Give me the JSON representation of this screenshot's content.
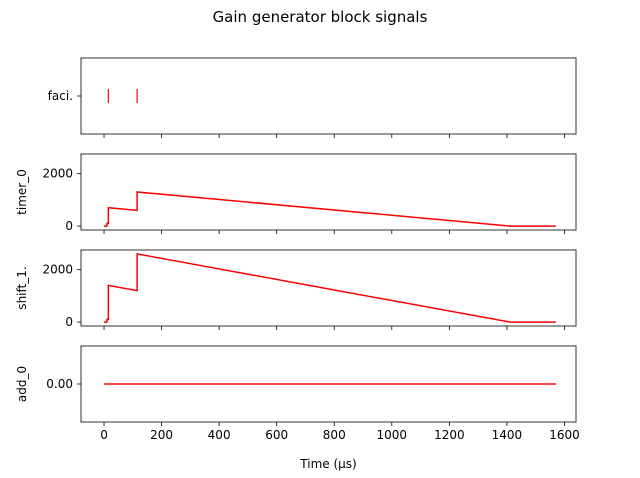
{
  "chart_data": {
    "type": "line",
    "title": "Gain generator block signals",
    "xlabel": "Time (μs)",
    "xlim": [
      -80,
      1640
    ],
    "xticks": [
      0,
      200,
      400,
      600,
      800,
      1000,
      1200,
      1400,
      1600
    ],
    "xtick_labels": [
      "0",
      "200",
      "400",
      "600",
      "800",
      "1000",
      "1200",
      "1400",
      "1600"
    ],
    "line_color": "#ff0000",
    "panels": [
      {
        "name": "faci.",
        "kind": "events",
        "ylabel": "",
        "yticks": [],
        "ytick_labels": [],
        "category_label": "faci.",
        "events": [
          15,
          115
        ]
      },
      {
        "name": "timer_0",
        "kind": "line",
        "ylabel": "timer_0",
        "ylim": [
          -150,
          2750
        ],
        "yticks": [
          0,
          2000
        ],
        "ytick_labels": [
          "0",
          "2000"
        ],
        "x": [
          0,
          10,
          10,
          15,
          15,
          115,
          115,
          1410,
          1570
        ],
        "y": [
          0,
          0,
          100,
          100,
          700,
          600,
          1300,
          0,
          0
        ]
      },
      {
        "name": "shift_1.",
        "kind": "line",
        "ylabel": "shift_1.",
        "ylim": [
          -150,
          2750
        ],
        "yticks": [
          0,
          2000
        ],
        "ytick_labels": [
          "0",
          "2000"
        ],
        "x": [
          0,
          10,
          10,
          15,
          15,
          115,
          115,
          1410,
          1570
        ],
        "y": [
          0,
          0,
          100,
          100,
          1400,
          1200,
          2600,
          0,
          0
        ]
      },
      {
        "name": "add_0",
        "kind": "line",
        "ylabel": "add_0",
        "ylim": [
          -1,
          1
        ],
        "yticks": [
          0
        ],
        "ytick_labels": [
          "0.00"
        ],
        "x": [
          0,
          1570
        ],
        "y": [
          0,
          0
        ]
      }
    ]
  }
}
